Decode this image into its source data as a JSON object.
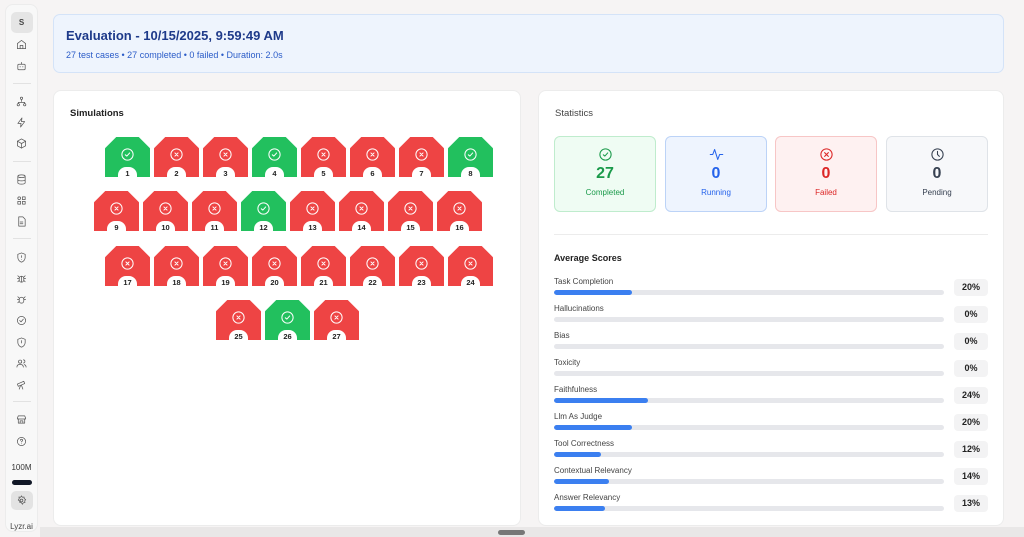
{
  "sidebar": {
    "avatar_initial": "S",
    "groups": [
      [
        {
          "name": "home-icon"
        },
        {
          "name": "bot-icon"
        }
      ],
      [
        {
          "name": "workflow-icon"
        },
        {
          "name": "lightning-icon"
        },
        {
          "name": "package-icon"
        }
      ],
      [
        {
          "name": "database-icon"
        },
        {
          "name": "grid-icon"
        },
        {
          "name": "document-icon"
        }
      ],
      [
        {
          "name": "shield-alert-icon"
        },
        {
          "name": "bug-icon"
        },
        {
          "name": "bug-play-icon"
        },
        {
          "name": "check-circle-icon"
        },
        {
          "name": "shield-icon"
        },
        {
          "name": "users-icon"
        },
        {
          "name": "telescope-icon"
        }
      ],
      [
        {
          "name": "store-icon"
        },
        {
          "name": "help-icon"
        }
      ]
    ],
    "credits": "100M",
    "brand": "Lyzr.ai"
  },
  "header": {
    "title": "Evaluation - 10/15/2025, 9:59:49 AM",
    "subtitle": "27 test cases • 27 completed • 0 failed • Duration: 2.0s"
  },
  "simulations": {
    "title": "Simulations",
    "items": [
      {
        "id": "1",
        "status": "pass"
      },
      {
        "id": "2",
        "status": "fail"
      },
      {
        "id": "3",
        "status": "fail"
      },
      {
        "id": "4",
        "status": "pass"
      },
      {
        "id": "5",
        "status": "fail"
      },
      {
        "id": "6",
        "status": "fail"
      },
      {
        "id": "7",
        "status": "fail"
      },
      {
        "id": "8",
        "status": "pass"
      },
      {
        "id": "9",
        "status": "fail"
      },
      {
        "id": "10",
        "status": "fail"
      },
      {
        "id": "11",
        "status": "fail"
      },
      {
        "id": "12",
        "status": "pass"
      },
      {
        "id": "13",
        "status": "fail"
      },
      {
        "id": "14",
        "status": "fail"
      },
      {
        "id": "15",
        "status": "fail"
      },
      {
        "id": "16",
        "status": "fail"
      },
      {
        "id": "17",
        "status": "fail"
      },
      {
        "id": "18",
        "status": "fail"
      },
      {
        "id": "19",
        "status": "fail"
      },
      {
        "id": "20",
        "status": "fail"
      },
      {
        "id": "21",
        "status": "fail"
      },
      {
        "id": "22",
        "status": "fail"
      },
      {
        "id": "23",
        "status": "fail"
      },
      {
        "id": "24",
        "status": "fail"
      },
      {
        "id": "25",
        "status": "fail"
      },
      {
        "id": "26",
        "status": "pass"
      },
      {
        "id": "27",
        "status": "fail"
      }
    ]
  },
  "statistics": {
    "title": "Statistics",
    "cards": {
      "completed": {
        "value": "27",
        "label": "Completed",
        "icon": "check-circle-icon",
        "color": "#1a9a4a"
      },
      "running": {
        "value": "0",
        "label": "Running",
        "icon": "activity-icon",
        "color": "#2563eb"
      },
      "failed": {
        "value": "0",
        "label": "Failed",
        "icon": "x-circle-icon",
        "color": "#dc2626"
      },
      "pending": {
        "value": "0",
        "label": "Pending",
        "icon": "clock-icon",
        "color": "#374151"
      }
    }
  },
  "scores": {
    "title": "Average Scores",
    "items": [
      {
        "label": "Task Completion",
        "value": 20,
        "display": "20%"
      },
      {
        "label": "Hallucinations",
        "value": 0,
        "display": "0%"
      },
      {
        "label": "Bias",
        "value": 0,
        "display": "0%"
      },
      {
        "label": "Toxicity",
        "value": 0,
        "display": "0%"
      },
      {
        "label": "Faithfulness",
        "value": 24,
        "display": "24%"
      },
      {
        "label": "Llm As Judge",
        "value": 20,
        "display": "20%"
      },
      {
        "label": "Tool Correctness",
        "value": 12,
        "display": "12%"
      },
      {
        "label": "Contextual Relevancy",
        "value": 14,
        "display": "14%"
      },
      {
        "label": "Answer Relevancy",
        "value": 13,
        "display": "13%"
      }
    ]
  },
  "colors": {
    "pass": "#22c05e",
    "fail": "#ee4444",
    "accent": "#3b7ff0"
  }
}
